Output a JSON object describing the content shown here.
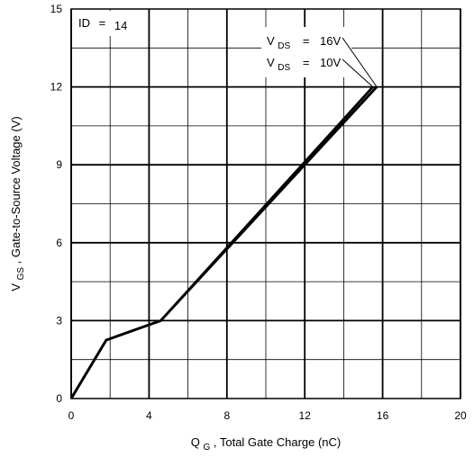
{
  "chart_data": {
    "type": "line",
    "x_ticks": [
      "0",
      "4",
      "8",
      "12",
      "16",
      "20"
    ],
    "y_ticks": [
      "0",
      "3",
      "6",
      "9",
      "12",
      "15"
    ],
    "xlim": [
      0,
      20
    ],
    "ylim": [
      0,
      15
    ],
    "xlabel": {
      "main": "Q",
      "sub": "G",
      "rest": ", Total Gate Charge (nC)"
    },
    "ylabel": {
      "main": "V",
      "sub": "GS",
      "rest": " , Gate-to-Source Voltage (V)"
    },
    "id_label": {
      "name": "ID",
      "eq": "=",
      "value": "14"
    },
    "annotations": [
      {
        "main": "V",
        "sub": "DS",
        "eq": "=",
        "value": "16V"
      },
      {
        "main": "V",
        "sub": "DS",
        "eq": "=",
        "value": "10V"
      }
    ],
    "series": [
      {
        "x": [
          0,
          1.8,
          4.6,
          15.7
        ],
        "y": [
          0,
          2.25,
          3.0,
          12
        ]
      },
      {
        "x": [
          0,
          1.8,
          4.6,
          15.5
        ],
        "y": [
          0,
          2.25,
          3.0,
          12
        ]
      }
    ],
    "major_grid_x": [
      0,
      4,
      8,
      12,
      16,
      20
    ],
    "minor_grid_x": [
      2,
      6,
      10,
      14,
      18
    ],
    "major_grid_y": [
      3,
      6,
      9,
      12
    ],
    "minor_grid_y": [
      1.5,
      4.5,
      7.5,
      10.5,
      13.5
    ],
    "grid": true,
    "line_color": "#000000"
  }
}
